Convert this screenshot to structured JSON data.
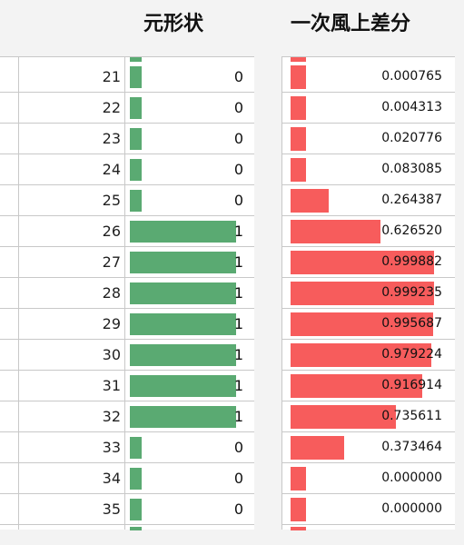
{
  "headers": {
    "left": "元形状",
    "right": "一次風上差分"
  },
  "colors": {
    "green_bar": "#5aaa72",
    "red_bar": "#f75c5c"
  },
  "rows": [
    {
      "index": "21",
      "shape": "0",
      "diff": "0.000765"
    },
    {
      "index": "22",
      "shape": "0",
      "diff": "0.004313"
    },
    {
      "index": "23",
      "shape": "0",
      "diff": "0.020776"
    },
    {
      "index": "24",
      "shape": "0",
      "diff": "0.083085"
    },
    {
      "index": "25",
      "shape": "0",
      "diff": "0.264387"
    },
    {
      "index": "26",
      "shape": "1",
      "diff": "0.626520"
    },
    {
      "index": "27",
      "shape": "1",
      "diff": "0.999882"
    },
    {
      "index": "28",
      "shape": "1",
      "diff": "0.999235"
    },
    {
      "index": "29",
      "shape": "1",
      "diff": "0.995687"
    },
    {
      "index": "30",
      "shape": "1",
      "diff": "0.979224"
    },
    {
      "index": "31",
      "shape": "1",
      "diff": "0.916914"
    },
    {
      "index": "32",
      "shape": "1",
      "diff": "0.735611"
    },
    {
      "index": "33",
      "shape": "0",
      "diff": "0.373464"
    },
    {
      "index": "34",
      "shape": "0",
      "diff": "0.000000"
    },
    {
      "index": "35",
      "shape": "0",
      "diff": "0.000000"
    }
  ]
}
